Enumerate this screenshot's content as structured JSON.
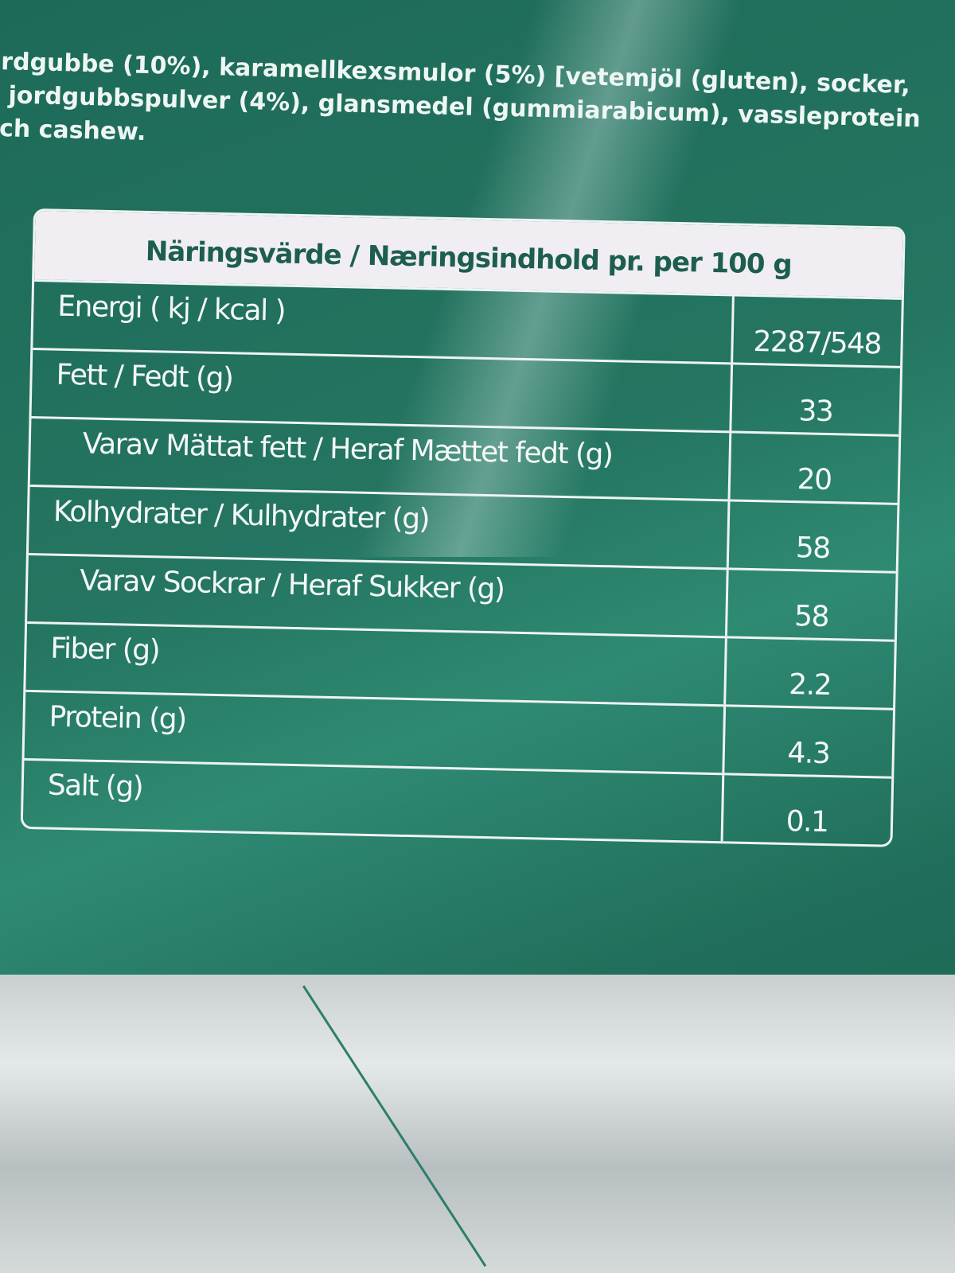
{
  "ingredients_text": "rdgubbe (10%), karamellkexsmulor (5%) [vetemjöl (gluten), socker,\n jordgubbspulver (4%), glansmedel (gummiarabicum), vassleprotein\nch cashew.",
  "nutrition": {
    "title": "Näringsvärde / Næringsindhold pr. per 100 g",
    "rows": [
      {
        "name": "Energi ( kj / kcal )",
        "value": "2287/548",
        "sub": false
      },
      {
        "name": "Fett / Fedt (g)",
        "value": "33",
        "sub": false
      },
      {
        "name": "Varav Mättat fett / Heraf Mættet fedt (g)",
        "value": "20",
        "sub": true
      },
      {
        "name": "Kolhydrater / Kulhydrater (g)",
        "value": "58",
        "sub": false
      },
      {
        "name": "Varav Sockrar / Heraf Sukker (g)",
        "value": "58",
        "sub": true
      },
      {
        "name": "Fiber (g)",
        "value": "2.2",
        "sub": false
      },
      {
        "name": "Protein (g)",
        "value": "4.3",
        "sub": false
      },
      {
        "name": "Salt (g)",
        "value": "0.1",
        "sub": false
      }
    ]
  },
  "colors": {
    "package_green": "#1f6d5a",
    "label_header": "#f1eef3",
    "silver": "#d5dada"
  }
}
